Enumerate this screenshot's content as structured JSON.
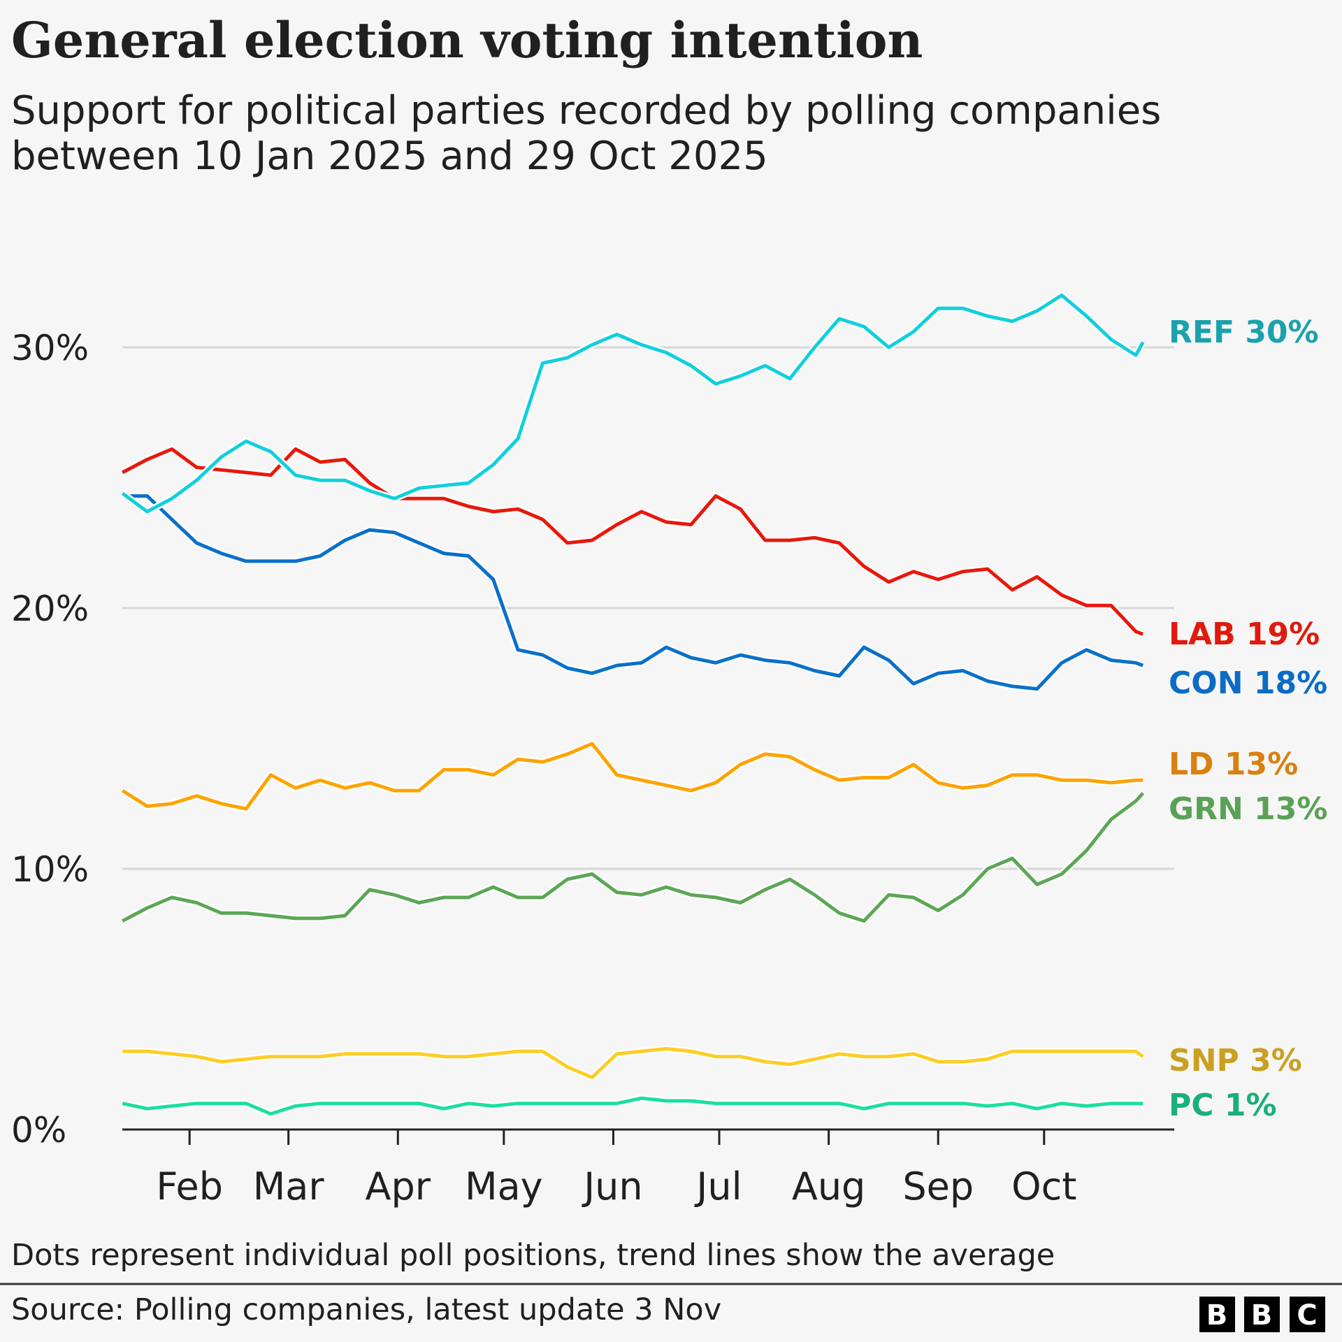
{
  "title": "General election voting intention",
  "subtitle_lines": [
    "Support for political parties recorded by polling companies",
    "between 10 Jan 2025 and 29 Oct 2025"
  ],
  "footnote": "Dots represent individual poll positions, trend lines show the average",
  "source": "Source: Polling companies, latest update 3 Nov",
  "logo": "BBC",
  "chart_data": {
    "type": "line",
    "xlabel": "",
    "ylabel": "",
    "xlim": [
      "2025-01-10",
      "2025-10-29"
    ],
    "ylim": [
      0,
      33
    ],
    "grid": true,
    "yticks": [
      {
        "value": 0,
        "label": "0%"
      },
      {
        "value": 10,
        "label": "10%"
      },
      {
        "value": 20,
        "label": "20%"
      },
      {
        "value": 30,
        "label": "30%"
      }
    ],
    "xticks": [
      {
        "date": "2025-02-01",
        "label": "Feb"
      },
      {
        "date": "2025-03-01",
        "label": "Mar"
      },
      {
        "date": "2025-04-01",
        "label": "Apr"
      },
      {
        "date": "2025-05-01",
        "label": "May"
      },
      {
        "date": "2025-06-01",
        "label": "Jun"
      },
      {
        "date": "2025-07-01",
        "label": "Jul"
      },
      {
        "date": "2025-08-01",
        "label": "Aug"
      },
      {
        "date": "2025-09-01",
        "label": "Sep"
      },
      {
        "date": "2025-10-01",
        "label": "Oct"
      }
    ],
    "dates": [
      "2025-01-13",
      "2025-01-20",
      "2025-01-27",
      "2025-02-03",
      "2025-02-10",
      "2025-02-17",
      "2025-02-24",
      "2025-03-03",
      "2025-03-10",
      "2025-03-17",
      "2025-03-24",
      "2025-03-31",
      "2025-04-07",
      "2025-04-14",
      "2025-04-21",
      "2025-04-28",
      "2025-05-05",
      "2025-05-12",
      "2025-05-19",
      "2025-05-26",
      "2025-06-02",
      "2025-06-09",
      "2025-06-16",
      "2025-06-23",
      "2025-06-30",
      "2025-07-07",
      "2025-07-14",
      "2025-07-21",
      "2025-07-28",
      "2025-08-04",
      "2025-08-11",
      "2025-08-18",
      "2025-08-25",
      "2025-09-01",
      "2025-09-08",
      "2025-09-15",
      "2025-09-22",
      "2025-09-29",
      "2025-10-06",
      "2025-10-13",
      "2025-10-20",
      "2025-10-27",
      "2025-10-29"
    ],
    "series": [
      {
        "name": "REF",
        "label": "REF 30%",
        "color": "#12cfdd",
        "label_color": "#1ba1ad",
        "values": [
          24.4,
          23.7,
          24.2,
          24.9,
          25.8,
          26.4,
          26.0,
          25.1,
          24.9,
          24.9,
          24.5,
          24.2,
          24.6,
          24.7,
          24.8,
          25.5,
          26.5,
          29.4,
          29.6,
          30.1,
          30.5,
          30.1,
          29.8,
          29.3,
          28.6,
          28.9,
          29.3,
          28.8,
          30.0,
          31.1,
          30.8,
          30.0,
          30.6,
          31.5,
          31.5,
          31.2,
          31.0,
          31.4,
          32.0,
          31.2,
          30.3,
          29.7,
          30.2
        ]
      },
      {
        "name": "LAB",
        "label": "LAB 19%",
        "color": "#e8180c",
        "label_color": "#e01a0d",
        "values": [
          25.2,
          25.7,
          26.1,
          25.4,
          25.3,
          25.2,
          25.1,
          26.1,
          25.6,
          25.7,
          24.8,
          24.2,
          24.2,
          24.2,
          23.9,
          23.7,
          23.8,
          23.4,
          22.5,
          22.6,
          23.2,
          23.7,
          23.3,
          23.2,
          24.3,
          23.8,
          22.6,
          22.6,
          22.7,
          22.5,
          21.6,
          21.0,
          21.4,
          21.1,
          21.4,
          21.5,
          20.7,
          21.2,
          20.5,
          20.1,
          20.1,
          19.1,
          19.0
        ]
      },
      {
        "name": "CON",
        "label": "CON 18%",
        "color": "#0a70c8",
        "label_color": "#0a6cc4",
        "values": [
          24.3,
          24.3,
          23.4,
          22.5,
          22.1,
          21.8,
          21.8,
          21.8,
          22.0,
          22.6,
          23.0,
          22.9,
          22.5,
          22.1,
          22.0,
          21.1,
          18.4,
          18.2,
          17.7,
          17.5,
          17.8,
          17.9,
          18.5,
          18.1,
          17.9,
          18.2,
          18.0,
          17.9,
          17.6,
          17.4,
          18.5,
          18.0,
          17.1,
          17.5,
          17.6,
          17.2,
          17.0,
          16.9,
          17.9,
          18.4,
          18.0,
          17.9,
          17.8
        ]
      },
      {
        "name": "LD",
        "label": "LD 13%",
        "color": "#fda300",
        "label_color": "#d9800f",
        "values": [
          13.0,
          12.4,
          12.5,
          12.8,
          12.5,
          12.3,
          13.6,
          13.1,
          13.4,
          13.1,
          13.3,
          13.0,
          13.0,
          13.8,
          13.8,
          13.6,
          14.2,
          14.1,
          14.4,
          14.8,
          13.6,
          13.4,
          13.2,
          13.0,
          13.3,
          14.0,
          14.4,
          14.3,
          13.8,
          13.4,
          13.5,
          13.5,
          14.0,
          13.3,
          13.1,
          13.2,
          13.6,
          13.6,
          13.4,
          13.4,
          13.3,
          13.4,
          13.4
        ]
      },
      {
        "name": "GRN",
        "label": "GRN 13%",
        "color": "#5ba755",
        "label_color": "#5aa155",
        "values": [
          8.0,
          8.5,
          8.9,
          8.7,
          8.3,
          8.3,
          8.2,
          8.1,
          8.1,
          8.2,
          9.2,
          9.0,
          8.7,
          8.9,
          8.9,
          9.3,
          8.9,
          8.9,
          9.6,
          9.8,
          9.1,
          9.0,
          9.3,
          9.0,
          8.9,
          8.7,
          9.2,
          9.6,
          9.0,
          8.3,
          8.0,
          9.0,
          8.9,
          8.4,
          9.0,
          10.0,
          10.4,
          9.4,
          9.8,
          10.7,
          11.9,
          12.6,
          12.9
        ]
      },
      {
        "name": "SNP",
        "label": "SNP 3%",
        "color": "#fdcd24",
        "label_color": "#c9a020",
        "values": [
          3.0,
          3.0,
          2.9,
          2.8,
          2.6,
          2.7,
          2.8,
          2.8,
          2.8,
          2.9,
          2.9,
          2.9,
          2.9,
          2.8,
          2.8,
          2.9,
          3.0,
          3.0,
          2.4,
          2.0,
          2.9,
          3.0,
          3.1,
          3.0,
          2.8,
          2.8,
          2.6,
          2.5,
          2.7,
          2.9,
          2.8,
          2.8,
          2.9,
          2.6,
          2.6,
          2.7,
          3.0,
          3.0,
          3.0,
          3.0,
          3.0,
          3.0,
          2.8
        ]
      },
      {
        "name": "PC",
        "label": "PC 1%",
        "color": "#1be09a",
        "label_color": "#1ab07a",
        "values": [
          1.0,
          0.8,
          0.9,
          1.0,
          1.0,
          1.0,
          0.6,
          0.9,
          1.0,
          1.0,
          1.0,
          1.0,
          1.0,
          0.8,
          1.0,
          0.9,
          1.0,
          1.0,
          1.0,
          1.0,
          1.0,
          1.2,
          1.1,
          1.1,
          1.0,
          1.0,
          1.0,
          1.0,
          1.0,
          1.0,
          0.8,
          1.0,
          1.0,
          1.0,
          1.0,
          0.9,
          1.0,
          0.8,
          1.0,
          0.9,
          1.0,
          1.0,
          1.0
        ]
      }
    ]
  }
}
